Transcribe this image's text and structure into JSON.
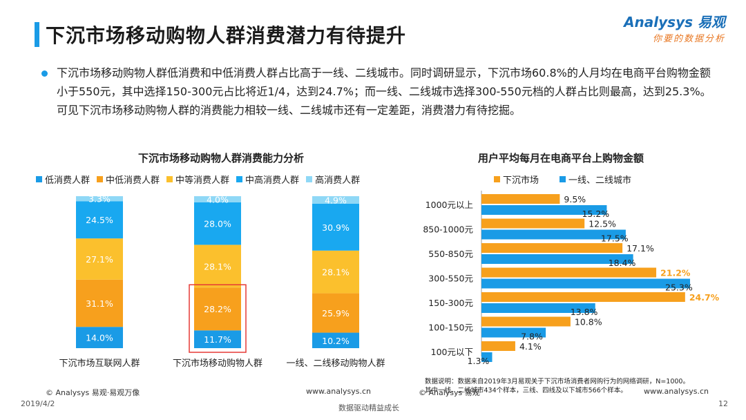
{
  "title": "下沉市场移动购物人群消费潜力有待提升",
  "logo": {
    "main": "Analysys 易观",
    "sub": "你要的数据分析"
  },
  "bullet": "下沉市场移动购物人群低消费和中低消费人群占比高于一线、二线城市。同时调研显示，下沉市场60.8%的人月均在电商平台购物金额小于550元，其中选择150-300元占比将近1/4，达到24.7%；而一线、二线城市选择300-550元档的人群占比则最高，达到25.3%。可见下沉市场移动购物人群的消费能力相较一线、二线城市还有一定差距，消费潜力有待挖掘。",
  "left_chart_title": "下沉市场移动购物人群消费能力分析",
  "right_chart_title": "用户平均每月在电商平台上购物金额",
  "watermark": "Analysys 易观",
  "watermark_sub": "你要的数据分析",
  "chart_data": [
    {
      "type": "bar",
      "stacked": true,
      "percent": true,
      "title": "下沉市场移动购物人群消费能力分析",
      "categories": [
        "下沉市场互联网人群",
        "下沉市场移动购物人群",
        "一线、二线移动购物人群"
      ],
      "series": [
        {
          "name": "低消费人群",
          "color": "#1a9be6",
          "values": [
            14.0,
            11.7,
            10.2
          ]
        },
        {
          "name": "中低消费人群",
          "color": "#f7a01d",
          "values": [
            31.1,
            28.2,
            25.9
          ]
        },
        {
          "name": "中等消费人群",
          "color": "#fbc02d",
          "values": [
            27.1,
            28.1,
            28.1
          ]
        },
        {
          "name": "中高消费人群",
          "color": "#19a8f0",
          "values": [
            24.5,
            28.0,
            30.9
          ]
        },
        {
          "name": "高消费人群",
          "color": "#8fd8f6",
          "values": [
            3.3,
            4.0,
            4.9
          ]
        }
      ],
      "labels": [
        [
          "14.0%",
          "31.1%",
          "27.1%",
          "24.5%",
          "3.3%"
        ],
        [
          "11.7%",
          "28.2%",
          "28.1%",
          "28.0%",
          "4.0%"
        ],
        [
          "10.2%",
          "25.9%",
          "28.1%",
          "30.9%",
          "4.9%"
        ]
      ],
      "highlight_category": 1,
      "ylim": [
        0,
        100
      ]
    },
    {
      "type": "bar",
      "orientation": "horizontal",
      "title": "用户平均每月在电商平台上购物金额",
      "categories": [
        "1000元以上",
        "850-1000元",
        "550-850元",
        "300-550元",
        "150-300元",
        "100-150元",
        "100元以下"
      ],
      "series": [
        {
          "name": "下沉市场",
          "color": "#f7a01d",
          "values": [
            9.5,
            12.5,
            17.1,
            21.2,
            24.7,
            10.8,
            4.1
          ],
          "labels": [
            "9.5%",
            "12.5%",
            "17.1%",
            "21.2%",
            "24.7%",
            "10.8%",
            "4.1%"
          ]
        },
        {
          "name": "一线、二线城市",
          "color": "#1a9be6",
          "values": [
            15.2,
            17.5,
            18.4,
            25.3,
            13.8,
            7.8,
            1.3
          ],
          "labels": [
            "15.2%",
            "17.5%",
            "18.4%",
            "25.3%",
            "13.8%",
            "7.8%",
            "1.3%"
          ]
        }
      ],
      "highlight_labels": [
        "21.2%",
        "24.7%"
      ],
      "xlim": [
        0,
        25.3
      ]
    }
  ],
  "note": {
    "line1": "数据说明：数据来自2019年3月易观关于下沉市场消费者网购行为的网络调研，N=1000。",
    "line2": "其中一线、二线城市434个样本，三线、四线及以下城市566个样本。"
  },
  "footer": {
    "copyright_left": "© Analysys 易观·易观万像",
    "url_left": "www.analysys.cn",
    "copyright_right": "© Analysys 易观",
    "url_right": "www.analysys.cn",
    "date": "2019/4/2",
    "slogan": "数据驱动精益成长",
    "page": "12"
  }
}
